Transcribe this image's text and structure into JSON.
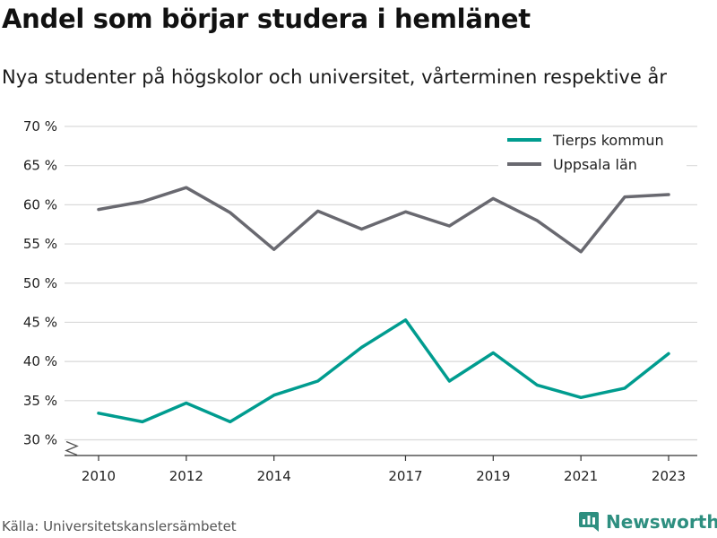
{
  "title": "Andel som börjar studera i hemlänet",
  "subtitle": "Nya studenter på högskolor och universitet, vårterminen respektive år",
  "source": "Källa: Universitetskanslersämbetet",
  "brand": {
    "name": "Newsworthy",
    "icon": "newsworthy-logo-icon",
    "color": "#2e8f80"
  },
  "chart_data": {
    "type": "line",
    "title": "Andel som börjar studera i hemlänet",
    "subtitle": "Nya studenter på högskolor och universitet, vårterminen respektive år",
    "xlabel": "",
    "ylabel": "",
    "x": [
      2010,
      2011,
      2012,
      2013,
      2014,
      2015,
      2016,
      2017,
      2018,
      2019,
      2020,
      2021,
      2022,
      2023
    ],
    "x_ticks": [
      2010,
      2012,
      2014,
      2017,
      2019,
      2021,
      2023
    ],
    "y_ticks": [
      30,
      35,
      40,
      45,
      50,
      55,
      60,
      65,
      70
    ],
    "y_tick_labels": [
      "30 %",
      "35 %",
      "40 %",
      "45 %",
      "50 %",
      "55 %",
      "60 %",
      "65 %",
      "70 %"
    ],
    "ylim": [
      28,
      70
    ],
    "xlim": [
      2010,
      2023
    ],
    "grid": true,
    "legend_position": "top-right",
    "y_axis_break": true,
    "series": [
      {
        "name": "Tierps kommun",
        "color": "#009c8f",
        "values": [
          33.4,
          32.3,
          34.7,
          32.3,
          35.7,
          37.5,
          41.8,
          45.3,
          37.5,
          41.1,
          37.0,
          35.4,
          36.6,
          41.0
        ]
      },
      {
        "name": "Uppsala län",
        "color": "#696970",
        "values": [
          59.4,
          60.4,
          62.2,
          59.0,
          54.3,
          59.2,
          56.9,
          59.1,
          57.3,
          60.8,
          58.0,
          54.0,
          61.0,
          61.3
        ]
      }
    ]
  }
}
